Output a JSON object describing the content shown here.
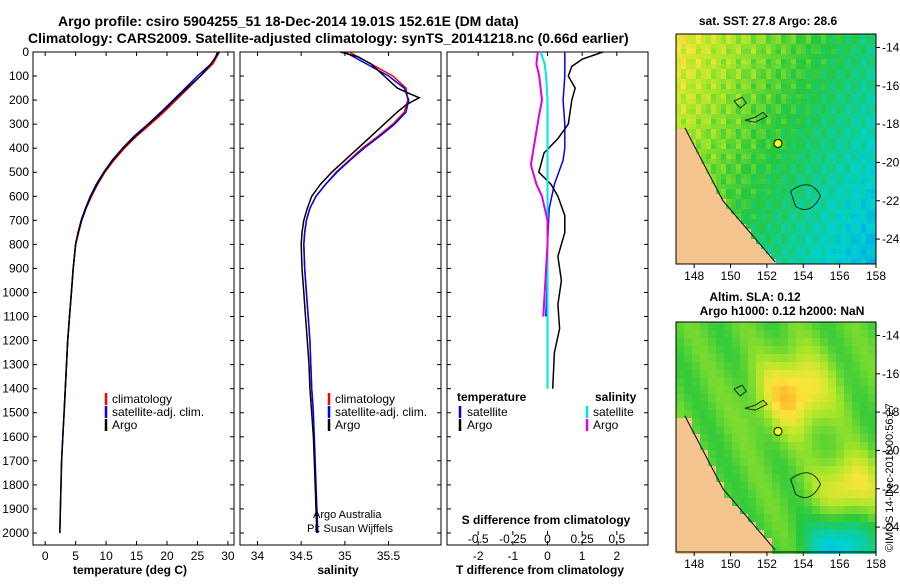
{
  "title": {
    "line1": "Argo profile: csiro 5904255_51 18-Dec-2014 19.01S 152.61E (DM data)",
    "line2": "Climatology: CARS2009. Satellite-adjusted climatology: synTS_20141218.nc (0.66d earlier)"
  },
  "chart_data": [
    {
      "type": "line",
      "name": "temperature",
      "xlabel": "temperature (deg C)",
      "xlim": [
        -2,
        31
      ],
      "xticks": [
        0,
        5,
        10,
        15,
        20,
        25,
        30
      ],
      "ylim": [
        2050,
        0
      ],
      "yticks": [
        0,
        100,
        200,
        300,
        400,
        500,
        600,
        700,
        800,
        900,
        1000,
        1100,
        1200,
        1300,
        1400,
        1500,
        1600,
        1700,
        1800,
        1900,
        2000
      ],
      "colors": {
        "climatology": "#ff0000",
        "satellite": "#0000ff",
        "argo": "#000000"
      },
      "legend": [
        "climatology",
        "satellite-adj. clim.",
        "Argo"
      ],
      "series": [
        {
          "name": "climatology",
          "points": [
            [
              28.6,
              0
            ],
            [
              27.5,
              50
            ],
            [
              25.5,
              100
            ],
            [
              23.5,
              150
            ],
            [
              21.5,
              200
            ],
            [
              19.5,
              250
            ],
            [
              17.3,
              300
            ],
            [
              15,
              350
            ],
            [
              13,
              400
            ],
            [
              11.3,
              450
            ],
            [
              9.8,
              500
            ],
            [
              8.6,
              550
            ],
            [
              7.6,
              600
            ],
            [
              6.7,
              650
            ],
            [
              6,
              700
            ],
            [
              5.5,
              750
            ],
            [
              5,
              800
            ],
            [
              4.6,
              900
            ],
            [
              4.3,
              1000
            ],
            [
              4,
              1100
            ],
            [
              3.7,
              1200
            ],
            [
              3.5,
              1300
            ],
            [
              3.3,
              1400
            ],
            [
              3.1,
              1500
            ]
          ]
        },
        {
          "name": "satellite",
          "points": [
            [
              28.6,
              0
            ],
            [
              27.2,
              50
            ],
            [
              25,
              100
            ],
            [
              23,
              150
            ],
            [
              21,
              200
            ],
            [
              19,
              250
            ],
            [
              16.9,
              300
            ],
            [
              14.6,
              350
            ],
            [
              12.7,
              400
            ],
            [
              11,
              450
            ],
            [
              9.6,
              500
            ],
            [
              8.4,
              550
            ],
            [
              7.4,
              600
            ],
            [
              6.6,
              650
            ],
            [
              5.9,
              700
            ],
            [
              5.4,
              750
            ],
            [
              5,
              800
            ],
            [
              4.6,
              900
            ],
            [
              4.3,
              1000
            ],
            [
              4,
              1100
            ],
            [
              3.7,
              1200
            ],
            [
              3.5,
              1300
            ],
            [
              3.3,
              1400
            ],
            [
              3.1,
              1500
            ],
            [
              2.9,
              1600
            ],
            [
              2.7,
              1700
            ],
            [
              2.6,
              1800
            ],
            [
              2.5,
              1900
            ],
            [
              2.4,
              2000
            ]
          ]
        },
        {
          "name": "argo",
          "points": [
            [
              28.3,
              0
            ],
            [
              28,
              20
            ],
            [
              27.2,
              50
            ],
            [
              25.5,
              100
            ],
            [
              23.3,
              150
            ],
            [
              21.2,
              200
            ],
            [
              19.2,
              250
            ],
            [
              17,
              300
            ],
            [
              14.8,
              350
            ],
            [
              12.8,
              400
            ],
            [
              11.1,
              450
            ],
            [
              9.7,
              500
            ],
            [
              8.5,
              550
            ],
            [
              7.5,
              600
            ],
            [
              6.7,
              650
            ],
            [
              6,
              700
            ],
            [
              5.4,
              750
            ],
            [
              5,
              800
            ],
            [
              4.6,
              900
            ],
            [
              4.3,
              1000
            ],
            [
              4,
              1100
            ],
            [
              3.7,
              1200
            ],
            [
              3.5,
              1300
            ],
            [
              3.3,
              1400
            ],
            [
              3.1,
              1500
            ],
            [
              2.9,
              1600
            ],
            [
              2.7,
              1700
            ],
            [
              2.6,
              1800
            ],
            [
              2.5,
              1900
            ],
            [
              2.4,
              2000
            ]
          ]
        }
      ]
    },
    {
      "type": "line",
      "name": "salinity",
      "xlabel": "salinity",
      "xlim": [
        33.8,
        36.1
      ],
      "xticks": [
        34,
        34.5,
        35,
        35.5
      ],
      "xticklabels": [
        "34",
        "34.5",
        "35",
        "35.5"
      ],
      "ylim": [
        2050,
        0
      ],
      "colors": {
        "climatology": "#ff0000",
        "satellite": "#0000ff",
        "argo": "#000000"
      },
      "legend": [
        "climatology",
        "satellite-adj. clim.",
        "Argo"
      ],
      "annotation": [
        "Argo Australia",
        "PI: Susan Wijffels"
      ],
      "series": [
        {
          "name": "climatology",
          "points": [
            [
              35.05,
              0
            ],
            [
              35.3,
              50
            ],
            [
              35.55,
              100
            ],
            [
              35.7,
              150
            ],
            [
              35.72,
              200
            ],
            [
              35.68,
              250
            ],
            [
              35.55,
              300
            ],
            [
              35.38,
              350
            ],
            [
              35.2,
              400
            ],
            [
              35.05,
              450
            ],
            [
              34.9,
              500
            ],
            [
              34.78,
              550
            ],
            [
              34.67,
              600
            ],
            [
              34.6,
              650
            ],
            [
              34.56,
              700
            ],
            [
              34.54,
              750
            ],
            [
              34.53,
              800
            ],
            [
              34.54,
              900
            ],
            [
              34.56,
              1000
            ],
            [
              34.58,
              1100
            ],
            [
              34.6,
              1200
            ],
            [
              34.61,
              1300
            ],
            [
              34.62,
              1400
            ],
            [
              34.64,
              1500
            ]
          ]
        },
        {
          "name": "satellite",
          "points": [
            [
              35,
              0
            ],
            [
              35.25,
              50
            ],
            [
              35.5,
              100
            ],
            [
              35.68,
              150
            ],
            [
              35.73,
              200
            ],
            [
              35.7,
              250
            ],
            [
              35.57,
              300
            ],
            [
              35.4,
              350
            ],
            [
              35.22,
              400
            ],
            [
              35.06,
              450
            ],
            [
              34.91,
              500
            ],
            [
              34.78,
              550
            ],
            [
              34.67,
              600
            ],
            [
              34.6,
              650
            ],
            [
              34.56,
              700
            ],
            [
              34.54,
              750
            ],
            [
              34.53,
              800
            ],
            [
              34.54,
              900
            ],
            [
              34.56,
              1000
            ],
            [
              34.58,
              1100
            ],
            [
              34.6,
              1200
            ],
            [
              34.61,
              1300
            ],
            [
              34.62,
              1400
            ],
            [
              34.64,
              1500
            ],
            [
              34.65,
              1600
            ],
            [
              34.66,
              1700
            ],
            [
              34.67,
              1800
            ],
            [
              34.68,
              1900
            ],
            [
              34.69,
              2000
            ]
          ]
        },
        {
          "name": "argo",
          "points": [
            [
              34.95,
              0
            ],
            [
              35.15,
              20
            ],
            [
              35.3,
              50
            ],
            [
              35.45,
              100
            ],
            [
              35.6,
              150
            ],
            [
              35.75,
              175
            ],
            [
              35.85,
              190
            ],
            [
              35.7,
              220
            ],
            [
              35.6,
              250
            ],
            [
              35.45,
              300
            ],
            [
              35.3,
              350
            ],
            [
              35.15,
              400
            ],
            [
              35,
              450
            ],
            [
              34.85,
              500
            ],
            [
              34.72,
              550
            ],
            [
              34.62,
              600
            ],
            [
              34.57,
              650
            ],
            [
              34.53,
              700
            ],
            [
              34.51,
              750
            ],
            [
              34.5,
              800
            ],
            [
              34.51,
              900
            ],
            [
              34.53,
              1000
            ],
            [
              34.55,
              1100
            ],
            [
              34.57,
              1200
            ],
            [
              34.59,
              1300
            ],
            [
              34.6,
              1400
            ],
            [
              34.62,
              1500
            ],
            [
              34.64,
              1600
            ],
            [
              34.65,
              1700
            ],
            [
              34.66,
              1800
            ],
            [
              34.67,
              1900
            ],
            [
              34.68,
              2000
            ]
          ]
        }
      ]
    },
    {
      "type": "line",
      "name": "differences",
      "xlabel": "T difference from climatology",
      "xlim": [
        -2.9,
        2.9
      ],
      "xticks": [
        -2,
        -1,
        0,
        1,
        2
      ],
      "secondary_xlabel": "S difference from climatology",
      "secondary_xticks": [
        -0.5,
        -0.25,
        0,
        0.25,
        0.5
      ],
      "secondary_xticklabels": [
        "-0.5",
        "-0.25",
        "0",
        "0.25",
        "0.5"
      ],
      "ylim": [
        2050,
        0
      ],
      "colors": {
        "t_satellite": "#0000ff",
        "t_argo": "#000000",
        "s_satellite": "#00e5e5",
        "s_argo": "#e000e0"
      },
      "legend_headers": [
        "temperature",
        "salinity"
      ],
      "legend_left": [
        "satellite",
        "Argo"
      ],
      "legend_right": [
        "satellite",
        "Argo"
      ],
      "series": [
        {
          "name": "t_satellite",
          "points": [
            [
              0.5,
              0
            ],
            [
              0.5,
              100
            ],
            [
              0.45,
              200
            ],
            [
              0.5,
              300
            ],
            [
              0.5,
              400
            ],
            [
              0.45,
              450
            ],
            [
              0.2,
              550
            ],
            [
              0.05,
              650
            ],
            [
              0,
              800
            ],
            [
              -0.02,
              1000
            ],
            [
              -0.05,
              1100
            ]
          ]
        },
        {
          "name": "t_argo",
          "points": [
            [
              1.6,
              0
            ],
            [
              1.0,
              30
            ],
            [
              0.7,
              60
            ],
            [
              0.6,
              100
            ],
            [
              0.8,
              150
            ],
            [
              0.7,
              200
            ],
            [
              0.6,
              300
            ],
            [
              0.3,
              360
            ],
            [
              -0.1,
              420
            ],
            [
              -0.25,
              500
            ],
            [
              0.1,
              550
            ],
            [
              0.3,
              600
            ],
            [
              0.5,
              680
            ],
            [
              0.5,
              750
            ],
            [
              0.3,
              850
            ],
            [
              0.4,
              950
            ],
            [
              0.3,
              1050
            ],
            [
              0.35,
              1150
            ],
            [
              0.2,
              1250
            ],
            [
              0.15,
              1400
            ]
          ]
        },
        {
          "name": "s_satellite",
          "points": [
            [
              -0.05,
              0
            ],
            [
              -0.02,
              50
            ],
            [
              -0.01,
              100
            ],
            [
              0,
              200
            ],
            [
              0,
              400
            ],
            [
              0,
              600
            ],
            [
              0,
              800
            ],
            [
              0,
              1000
            ],
            [
              0,
              1200
            ],
            [
              0,
              1400
            ]
          ]
        },
        {
          "name": "s_argo",
          "points": [
            [
              -0.07,
              0
            ],
            [
              -0.08,
              50
            ],
            [
              -0.06,
              100
            ],
            [
              -0.05,
              150
            ],
            [
              -0.04,
              200
            ],
            [
              -0.06,
              260
            ],
            [
              -0.08,
              330
            ],
            [
              -0.1,
              400
            ],
            [
              -0.12,
              470
            ],
            [
              -0.08,
              550
            ],
            [
              -0.04,
              600
            ],
            [
              -0.02,
              650
            ],
            [
              0,
              700
            ],
            [
              0,
              800
            ],
            [
              -0.01,
              900
            ],
            [
              -0.02,
              1000
            ],
            [
              -0.03,
              1100
            ]
          ]
        }
      ]
    },
    {
      "type": "heatmap",
      "name": "sst_map",
      "title": "sat. SST: 27.8 Argo: 28.6",
      "xticks": [
        148,
        150,
        152,
        154,
        156,
        158
      ],
      "yticks": [
        -14,
        -16,
        -18,
        -20,
        -22,
        -24
      ],
      "xlim": [
        147,
        158
      ],
      "ylim": [
        -25.3,
        -13.3
      ],
      "argo_position": [
        152.61,
        -19.01
      ]
    },
    {
      "type": "heatmap",
      "name": "sla_map",
      "title_lines": [
        "Altim. SLA: 0.12",
        "Argo h1000: 0.12 h2000: NaN"
      ],
      "xticks": [
        148,
        150,
        152,
        154,
        156,
        158
      ],
      "yticks": [
        -14,
        -16,
        -18,
        -20,
        -22,
        -24
      ],
      "xlim": [
        147,
        158
      ],
      "ylim": [
        -25.3,
        -13.3
      ],
      "argo_position": [
        152.61,
        -19.01
      ]
    }
  ],
  "side_label": "©IMOS 14-Dec-2018 00:56:27"
}
